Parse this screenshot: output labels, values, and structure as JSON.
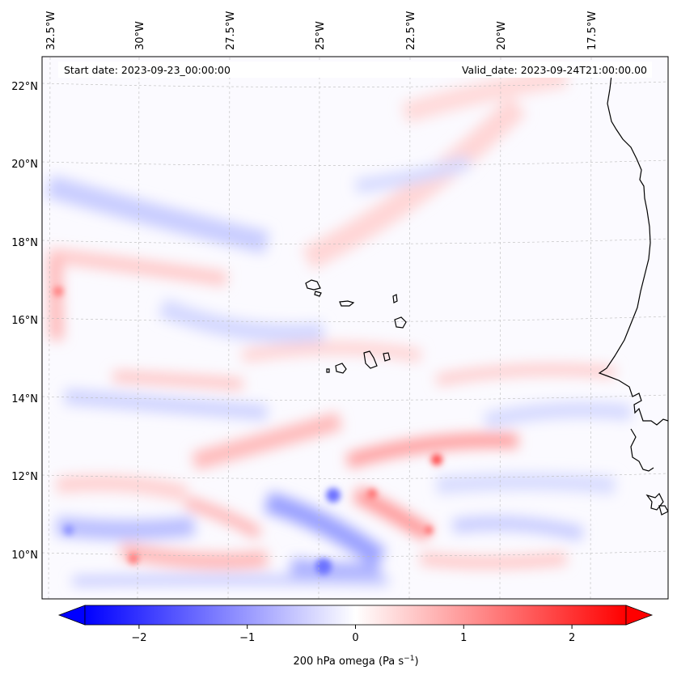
{
  "map": {
    "start_date": "Start date: 2023-09-23_00:00:00",
    "valid_date": "Valid_date: 2023-09-24T21:00:00.00",
    "lon_labels": [
      "32.5°W",
      "30°W",
      "27.5°W",
      "25°W",
      "22.5°W",
      "20°W",
      "17.5°W"
    ],
    "lat_labels": [
      "22°N",
      "20°N",
      "18°N",
      "16°N",
      "14°N",
      "12°N",
      "10°N"
    ]
  },
  "colorbar": {
    "ticks": [
      "−2",
      "−1",
      "0",
      "1",
      "2"
    ],
    "tick_values": [
      -2,
      -1,
      0,
      1,
      2
    ],
    "range": [
      -2.5,
      2.5
    ],
    "label": "200 hPa omega (Pa s",
    "label_sup": "−1",
    "label_close": ")",
    "colors": {
      "negative": "#0000ff",
      "zero": "#ffffff",
      "positive": "#ff0000"
    }
  }
}
